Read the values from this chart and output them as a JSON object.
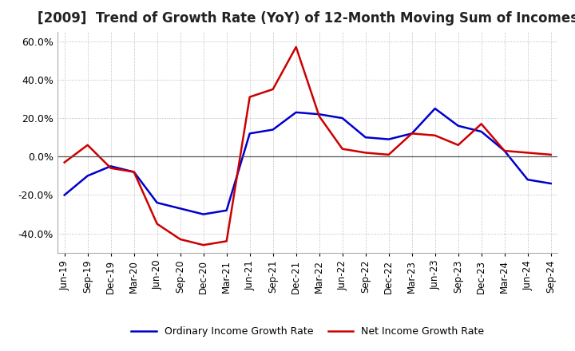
{
  "title": "[2009]  Trend of Growth Rate (YoY) of 12-Month Moving Sum of Incomes",
  "title_fontsize": 12,
  "background_color": "#ffffff",
  "grid_color": "#aaaaaa",
  "ordinary_color": "#0000cc",
  "net_color": "#cc0000",
  "legend_labels": [
    "Ordinary Income Growth Rate",
    "Net Income Growth Rate"
  ],
  "x_labels": [
    "Jun-19",
    "Sep-19",
    "Dec-19",
    "Mar-20",
    "Jun-20",
    "Sep-20",
    "Dec-20",
    "Mar-21",
    "Jun-21",
    "Sep-21",
    "Dec-21",
    "Mar-22",
    "Jun-22",
    "Sep-22",
    "Dec-22",
    "Mar-23",
    "Jun-23",
    "Sep-23",
    "Dec-23",
    "Mar-24",
    "Jun-24",
    "Sep-24"
  ],
  "ordinary_income": [
    -20,
    -10,
    -5,
    -8,
    -24,
    -27,
    -30,
    -28,
    12,
    14,
    23,
    22,
    20,
    10,
    9,
    12,
    25,
    16,
    13,
    3,
    -12,
    -14
  ],
  "net_income": [
    -3,
    6,
    -6,
    -8,
    -35,
    -43,
    -46,
    -44,
    31,
    35,
    57,
    21,
    4,
    2,
    1,
    12,
    11,
    6,
    17,
    3,
    2,
    1
  ],
  "ylim": [
    -50,
    65
  ],
  "yticks": [
    -40,
    -20,
    0,
    20,
    40,
    60
  ]
}
